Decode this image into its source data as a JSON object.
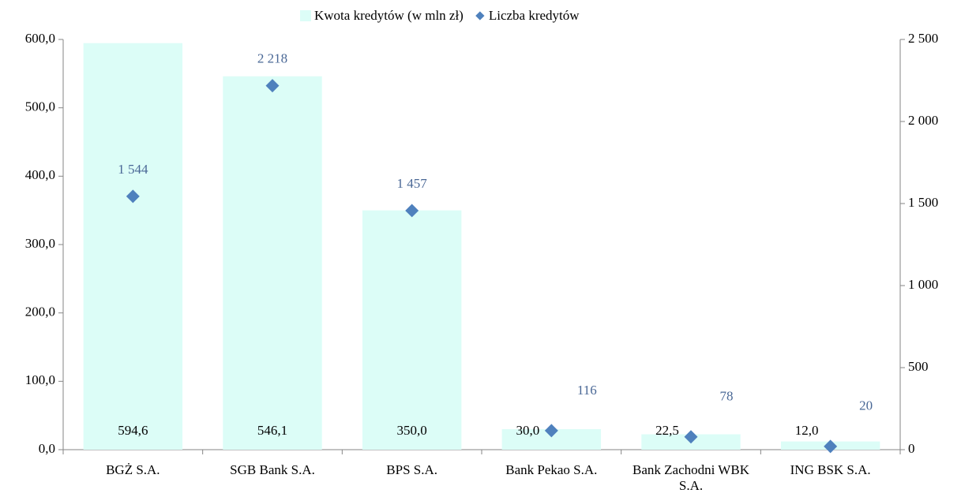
{
  "chart_data": {
    "type": "bar",
    "categories": [
      "BGŻ S.A.",
      "SGB Bank S.A.",
      "BPS S.A.",
      "Bank Pekao S.A.",
      "Bank Zachodni WBK S.A.",
      "ING BSK S.A."
    ],
    "series": [
      {
        "name": "Kwota kredytów (w mln zł)",
        "type": "bar",
        "color": "#dcfdf7",
        "values": [
          594.6,
          546.1,
          350.0,
          30.0,
          22.5,
          12.0
        ],
        "value_labels": [
          "594,6",
          "546,1",
          "350,0",
          "30,0",
          "22,5",
          "12,0"
        ]
      },
      {
        "name": "Liczba kredytów",
        "type": "scatter",
        "axis": "y2",
        "color": "#4f81bd",
        "values": [
          1544,
          2218,
          1457,
          116,
          78,
          20
        ],
        "value_labels": [
          "1 544",
          "2 218",
          "1 457",
          "116",
          "78",
          "20"
        ]
      }
    ],
    "ylim": [
      0,
      600
    ],
    "yticks": [
      {
        "value": 0,
        "label": "0,0"
      },
      {
        "value": 100,
        "label": "100,0"
      },
      {
        "value": 200,
        "label": "200,0"
      },
      {
        "value": 300,
        "label": "300,0"
      },
      {
        "value": 400,
        "label": "400,0"
      },
      {
        "value": 500,
        "label": "500,0"
      },
      {
        "value": 600,
        "label": "600,0"
      }
    ],
    "y2lim": [
      0,
      2500
    ],
    "y2ticks": [
      0,
      500,
      {
        "value": 1000,
        "label": "1 000"
      },
      {
        "value": 1500,
        "label": "1 500"
      },
      {
        "value": 2000,
        "label": "2 000"
      },
      {
        "value": 2500,
        "label": "2 500"
      }
    ],
    "legend": "top"
  }
}
